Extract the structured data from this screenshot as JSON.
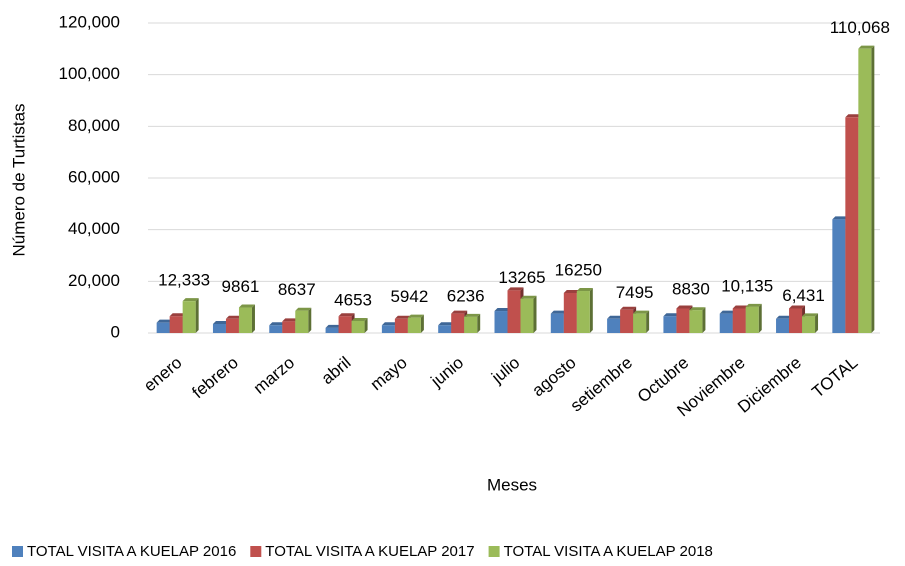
{
  "chart_data": {
    "type": "bar3d",
    "categories": [
      "enero",
      "febrero",
      "marzo",
      "abril",
      "mayo",
      "junio",
      "julio",
      "agosto",
      "setiembre",
      "Octubre",
      "Noviembre",
      "Diciembre",
      "TOTAL"
    ],
    "series": [
      {
        "name": "TOTAL VISITA A KUELAP 2016",
        "color": "#4f81bd",
        "values": [
          4000,
          3500,
          3000,
          2000,
          3000,
          3000,
          8500,
          7500,
          5500,
          6500,
          7500,
          5500,
          44000
        ]
      },
      {
        "name": "TOTAL VISITA A KUELAP 2017",
        "color": "#c0504d",
        "values": [
          6500,
          5500,
          4500,
          6500,
          5500,
          7500,
          16500,
          15500,
          9000,
          9500,
          9500,
          9500,
          83500
        ]
      },
      {
        "name": "TOTAL VISITA A KUELAP 2018",
        "color": "#9bbb59",
        "values": [
          12333,
          9861,
          8637,
          4653,
          5942,
          6236,
          13265,
          16250,
          7495,
          8830,
          10135,
          6431,
          110068
        ],
        "value_labels": [
          "12,333",
          "9861",
          "8637",
          "4653",
          "5942",
          "6236",
          "13265",
          "16250",
          "7495",
          "8830",
          "10,135",
          "6,431",
          "110,068"
        ]
      }
    ],
    "ylabel": "Número de Turtistas",
    "xlabel": "Meses",
    "ylim": [
      0,
      120000
    ],
    "yticks": [
      0,
      {
        "value": 20000,
        "label": "20,000"
      },
      {
        "value": 40000,
        "label": "40,000"
      },
      {
        "value": 60000,
        "label": "60,000"
      },
      {
        "value": 80000,
        "label": "80,000"
      },
      {
        "value": 100000,
        "label": "100,000"
      },
      {
        "value": 120000,
        "label": "120,000"
      }
    ],
    "grid": true,
    "legend": "bottom"
  }
}
